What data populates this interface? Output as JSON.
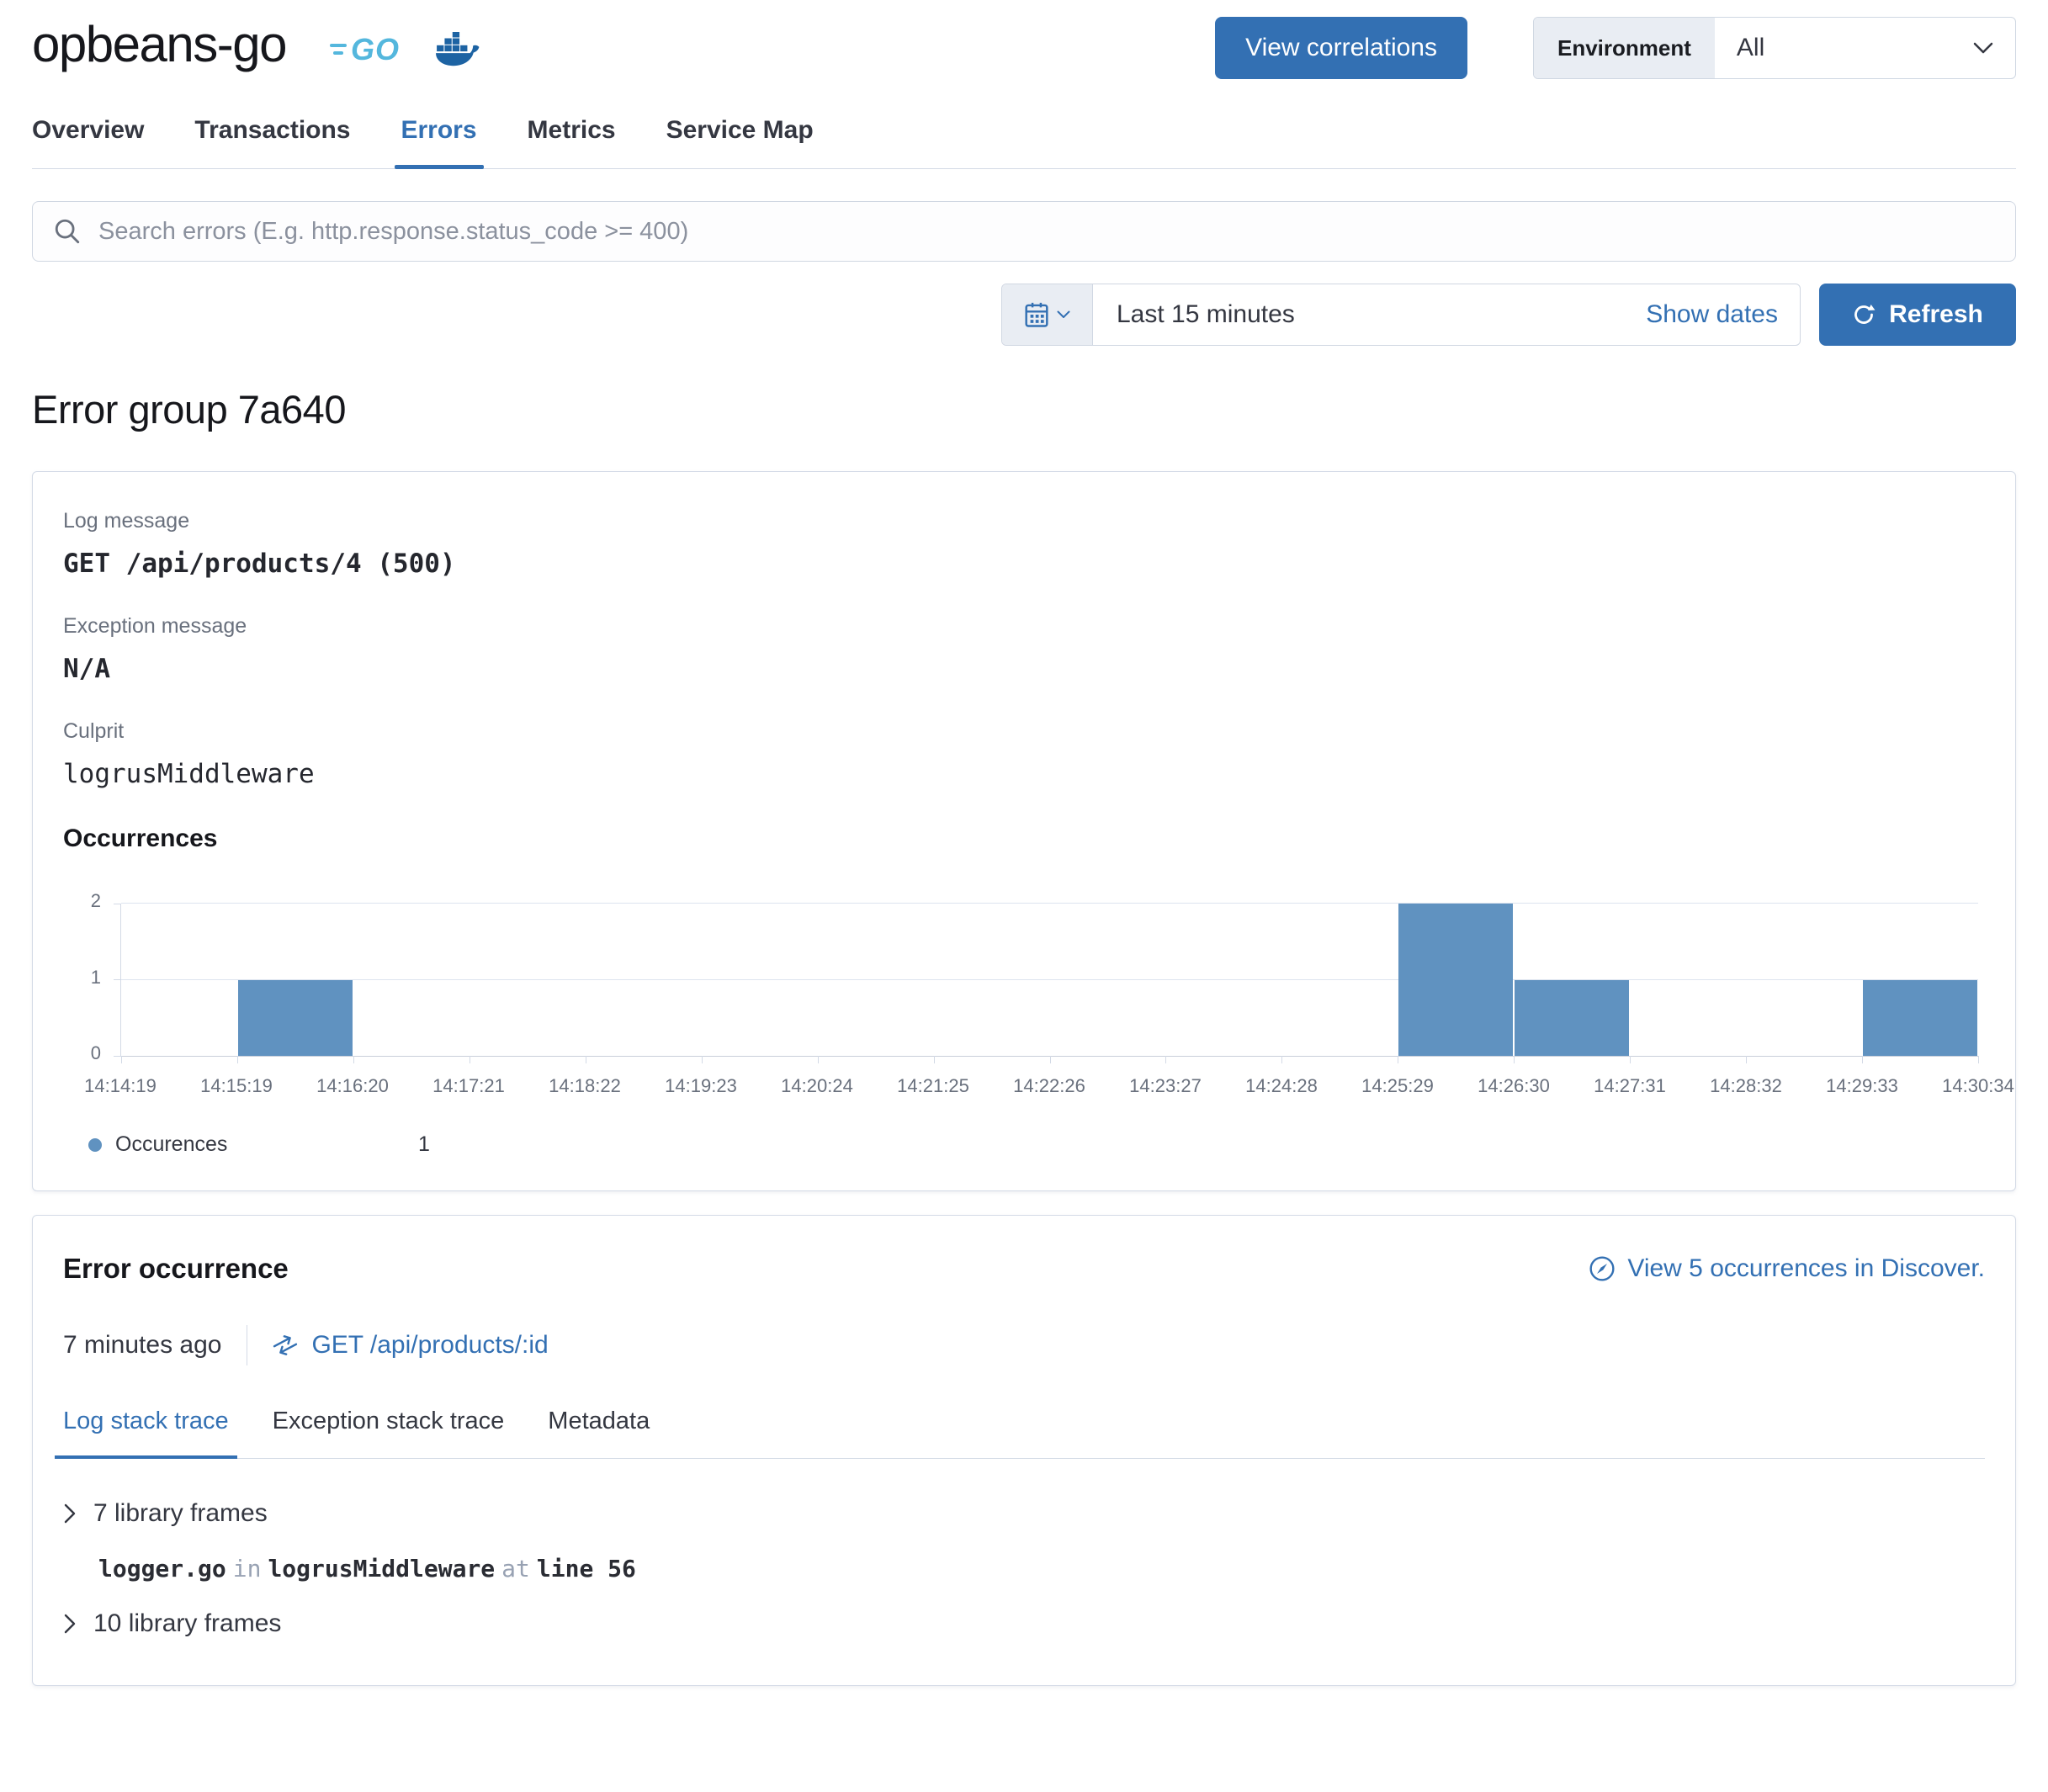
{
  "header": {
    "service_name": "opbeans-go",
    "go_text": "GO",
    "view_correlations_label": "View correlations",
    "environment_label": "Environment",
    "environment_value": "All"
  },
  "nav_tabs": [
    {
      "label": "Overview",
      "active": false
    },
    {
      "label": "Transactions",
      "active": false
    },
    {
      "label": "Errors",
      "active": true
    },
    {
      "label": "Metrics",
      "active": false
    },
    {
      "label": "Service Map",
      "active": false
    }
  ],
  "search": {
    "placeholder": "Search errors (E.g. http.response.status_code >= 400)"
  },
  "time_controls": {
    "quick_range": "Last 15 minutes",
    "show_dates_label": "Show dates",
    "refresh_label": "Refresh"
  },
  "page_title": "Error group 7a640",
  "error_group": {
    "log_message_label": "Log message",
    "log_message": "GET /api/products/4 (500)",
    "exception_message_label": "Exception message",
    "exception_message": "N/A",
    "culprit_label": "Culprit",
    "culprit": "logrusMiddleware",
    "occurrences_title": "Occurrences"
  },
  "chart_data": {
    "type": "bar",
    "title": "Occurrences",
    "x": [
      "14:14:19",
      "14:15:19",
      "14:16:20",
      "14:17:21",
      "14:18:22",
      "14:19:23",
      "14:20:24",
      "14:21:25",
      "14:22:26",
      "14:23:27",
      "14:24:28",
      "14:25:29",
      "14:26:30",
      "14:27:31",
      "14:28:32",
      "14:29:33",
      "14:30:34"
    ],
    "values": [
      0,
      1,
      0,
      0,
      0,
      0,
      0,
      0,
      0,
      0,
      0,
      2,
      1,
      0,
      0,
      1,
      0
    ],
    "bar_alignment": "interval-start",
    "ylim": [
      0,
      2
    ],
    "yticks": [
      0,
      1,
      2
    ],
    "bar_color": "#6092c0",
    "grid": true,
    "legend_position": "bottom",
    "legend": {
      "label": "Occurences",
      "value": "1"
    }
  },
  "error_occurrence": {
    "title": "Error occurrence",
    "discover_link_label": "View 5 occurrences in Discover.",
    "timestamp": "7 minutes ago",
    "transaction_link_label": "GET /api/products/:id",
    "tabs": [
      {
        "label": "Log stack trace",
        "active": true
      },
      {
        "label": "Exception stack trace",
        "active": false
      },
      {
        "label": "Metadata",
        "active": false
      }
    ],
    "stack_trace": {
      "group_top_label": "7 library frames",
      "frame": {
        "file": "logger.go",
        "in_word": "in",
        "function": "logrusMiddleware",
        "at_word": "at",
        "line": "line 56"
      },
      "group_bottom_label": "10 library frames"
    }
  },
  "colors": {
    "primary": "#3370b3",
    "bar": "#6092c0",
    "text": "#343741",
    "subdued": "#69707d",
    "border": "#d3dae6",
    "go_brand": "#54b7dd",
    "docker_brand": "#1d63a3"
  }
}
